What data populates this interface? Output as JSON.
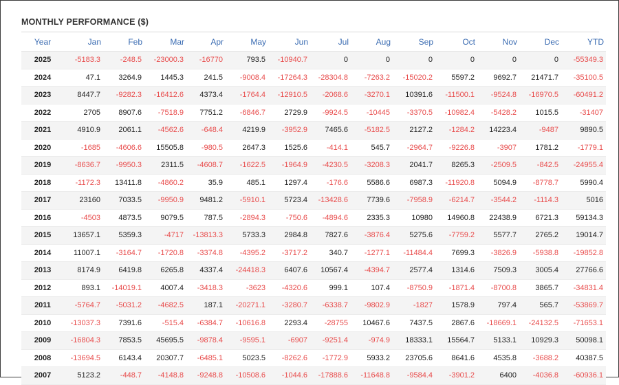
{
  "title": "MONTHLY PERFORMANCE ($)",
  "columns": [
    "Year",
    "Jan",
    "Feb",
    "Mar",
    "Apr",
    "May",
    "Jun",
    "Jul",
    "Aug",
    "Sep",
    "Oct",
    "Nov",
    "Dec",
    "YTD"
  ],
  "colors": {
    "header_text": "#3b6cb2",
    "negative": "#e84b4b",
    "positive": "#222222",
    "row_alt": "#f4f4f4"
  },
  "rows": [
    [
      "2025",
      "-5183.3",
      "-248.5",
      "-23000.3",
      "-16770",
      "793.5",
      "-10940.7",
      "0",
      "0",
      "0",
      "0",
      "0",
      "0",
      "-55349.3"
    ],
    [
      "2024",
      "47.1",
      "3264.9",
      "1445.3",
      "241.5",
      "-9008.4",
      "-17264.3",
      "-28304.8",
      "-7263.2",
      "-15020.2",
      "5597.2",
      "9692.7",
      "21471.7",
      "-35100.5"
    ],
    [
      "2023",
      "8447.7",
      "-9282.3",
      "-16412.6",
      "4373.4",
      "-1764.4",
      "-12910.5",
      "-2068.6",
      "-3270.1",
      "10391.6",
      "-11500.1",
      "-9524.8",
      "-16970.5",
      "-60491.2"
    ],
    [
      "2022",
      "2705",
      "8907.6",
      "-7518.9",
      "7751.2",
      "-6846.7",
      "2729.9",
      "-9924.5",
      "-10445",
      "-3370.5",
      "-10982.4",
      "-5428.2",
      "1015.5",
      "-31407"
    ],
    [
      "2021",
      "4910.9",
      "2061.1",
      "-4562.6",
      "-648.4",
      "4219.9",
      "-3952.9",
      "7465.6",
      "-5182.5",
      "2127.2",
      "-1284.2",
      "14223.4",
      "-9487",
      "9890.5"
    ],
    [
      "2020",
      "-1685",
      "-4606.6",
      "15505.8",
      "-980.5",
      "2647.3",
      "1525.6",
      "-414.1",
      "545.7",
      "-2964.7",
      "-9226.8",
      "-3907",
      "1781.2",
      "-1779.1"
    ],
    [
      "2019",
      "-8636.7",
      "-9950.3",
      "2311.5",
      "-4608.7",
      "-1622.5",
      "-1964.9",
      "-4230.5",
      "-3208.3",
      "2041.7",
      "8265.3",
      "-2509.5",
      "-842.5",
      "-24955.4"
    ],
    [
      "2018",
      "-1172.3",
      "13411.8",
      "-4860.2",
      "35.9",
      "485.1",
      "1297.4",
      "-176.6",
      "5586.6",
      "6987.3",
      "-11920.8",
      "5094.9",
      "-8778.7",
      "5990.4"
    ],
    [
      "2017",
      "23160",
      "7033.5",
      "-9950.9",
      "9481.2",
      "-5910.1",
      "5723.4",
      "-13428.6",
      "7739.6",
      "-7958.9",
      "-6214.7",
      "-3544.2",
      "-1114.3",
      "5016"
    ],
    [
      "2016",
      "-4503",
      "4873.5",
      "9079.5",
      "787.5",
      "-2894.3",
      "-750.6",
      "-4894.6",
      "2335.3",
      "10980",
      "14960.8",
      "22438.9",
      "6721.3",
      "59134.3"
    ],
    [
      "2015",
      "13657.1",
      "5359.3",
      "-4717",
      "-13813.3",
      "5733.3",
      "2984.8",
      "7827.6",
      "-3876.4",
      "5275.6",
      "-7759.2",
      "5577.7",
      "2765.2",
      "19014.7"
    ],
    [
      "2014",
      "11007.1",
      "-3164.7",
      "-1720.8",
      "-3374.8",
      "-4395.2",
      "-3717.2",
      "340.7",
      "-1277.1",
      "-11484.4",
      "7699.3",
      "-3826.9",
      "-5938.8",
      "-19852.8"
    ],
    [
      "2013",
      "8174.9",
      "6419.8",
      "6265.8",
      "4337.4",
      "-24418.3",
      "6407.6",
      "10567.4",
      "-4394.7",
      "2577.4",
      "1314.6",
      "7509.3",
      "3005.4",
      "27766.6"
    ],
    [
      "2012",
      "893.1",
      "-14019.1",
      "4007.4",
      "-3418.3",
      "-3623",
      "-4320.6",
      "999.1",
      "107.4",
      "-8750.9",
      "-1871.4",
      "-8700.8",
      "3865.7",
      "-34831.4"
    ],
    [
      "2011",
      "-5764.7",
      "-5031.2",
      "-4682.5",
      "187.1",
      "-20271.1",
      "-3280.7",
      "-6338.7",
      "-9802.9",
      "-1827",
      "1578.9",
      "797.4",
      "565.7",
      "-53869.7"
    ],
    [
      "2010",
      "-13037.3",
      "7391.6",
      "-515.4",
      "-6384.7",
      "-10616.8",
      "2293.4",
      "-28755",
      "10467.6",
      "7437.5",
      "2867.6",
      "-18669.1",
      "-24132.5",
      "-71653.1"
    ],
    [
      "2009",
      "-16804.3",
      "7853.5",
      "45695.5",
      "-9878.4",
      "-9595.1",
      "-6907",
      "-9251.4",
      "-974.9",
      "18333.1",
      "15564.7",
      "5133.1",
      "10929.3",
      "50098.1"
    ],
    [
      "2008",
      "-13694.5",
      "6143.4",
      "20307.7",
      "-6485.1",
      "5023.5",
      "-8262.6",
      "-1772.9",
      "5933.2",
      "23705.6",
      "8641.6",
      "4535.8",
      "-3688.2",
      "40387.5"
    ],
    [
      "2007",
      "5123.2",
      "-448.7",
      "-4148.8",
      "-9248.8",
      "-10508.6",
      "-1044.6",
      "-17888.6",
      "-11648.8",
      "-9584.4",
      "-3901.2",
      "6400",
      "-4036.8",
      "-60936.1"
    ]
  ]
}
